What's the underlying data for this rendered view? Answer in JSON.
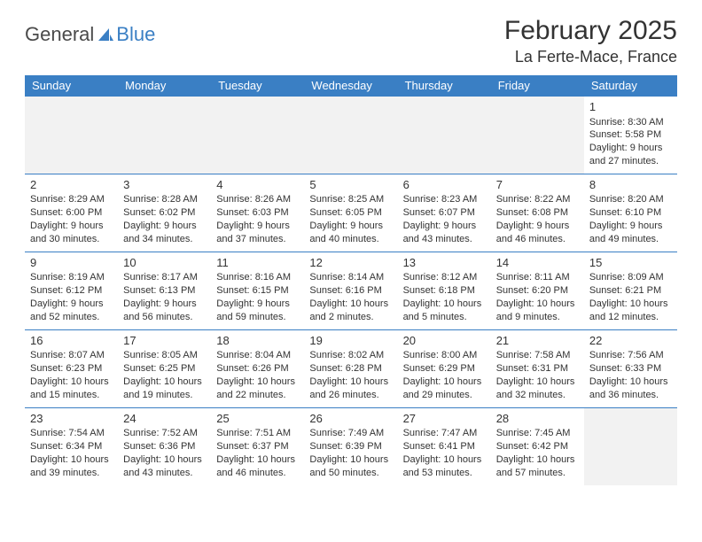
{
  "logo": {
    "text1": "General",
    "text2": "Blue"
  },
  "header": {
    "month_title": "February 2025",
    "location": "La Ferte-Mace, France"
  },
  "colors": {
    "header_bg": "#3a7fc4",
    "header_text": "#ffffff",
    "cell_border": "#3a7fc4",
    "empty_bg": "#f2f2f2",
    "text": "#333333"
  },
  "daynames": [
    "Sunday",
    "Monday",
    "Tuesday",
    "Wednesday",
    "Thursday",
    "Friday",
    "Saturday"
  ],
  "weeks": [
    [
      null,
      null,
      null,
      null,
      null,
      null,
      {
        "n": "1",
        "sunrise": "8:30 AM",
        "sunset": "5:58 PM",
        "dl": "9 hours and 27 minutes."
      }
    ],
    [
      {
        "n": "2",
        "sunrise": "8:29 AM",
        "sunset": "6:00 PM",
        "dl": "9 hours and 30 minutes."
      },
      {
        "n": "3",
        "sunrise": "8:28 AM",
        "sunset": "6:02 PM",
        "dl": "9 hours and 34 minutes."
      },
      {
        "n": "4",
        "sunrise": "8:26 AM",
        "sunset": "6:03 PM",
        "dl": "9 hours and 37 minutes."
      },
      {
        "n": "5",
        "sunrise": "8:25 AM",
        "sunset": "6:05 PM",
        "dl": "9 hours and 40 minutes."
      },
      {
        "n": "6",
        "sunrise": "8:23 AM",
        "sunset": "6:07 PM",
        "dl": "9 hours and 43 minutes."
      },
      {
        "n": "7",
        "sunrise": "8:22 AM",
        "sunset": "6:08 PM",
        "dl": "9 hours and 46 minutes."
      },
      {
        "n": "8",
        "sunrise": "8:20 AM",
        "sunset": "6:10 PM",
        "dl": "9 hours and 49 minutes."
      }
    ],
    [
      {
        "n": "9",
        "sunrise": "8:19 AM",
        "sunset": "6:12 PM",
        "dl": "9 hours and 52 minutes."
      },
      {
        "n": "10",
        "sunrise": "8:17 AM",
        "sunset": "6:13 PM",
        "dl": "9 hours and 56 minutes."
      },
      {
        "n": "11",
        "sunrise": "8:16 AM",
        "sunset": "6:15 PM",
        "dl": "9 hours and 59 minutes."
      },
      {
        "n": "12",
        "sunrise": "8:14 AM",
        "sunset": "6:16 PM",
        "dl": "10 hours and 2 minutes."
      },
      {
        "n": "13",
        "sunrise": "8:12 AM",
        "sunset": "6:18 PM",
        "dl": "10 hours and 5 minutes."
      },
      {
        "n": "14",
        "sunrise": "8:11 AM",
        "sunset": "6:20 PM",
        "dl": "10 hours and 9 minutes."
      },
      {
        "n": "15",
        "sunrise": "8:09 AM",
        "sunset": "6:21 PM",
        "dl": "10 hours and 12 minutes."
      }
    ],
    [
      {
        "n": "16",
        "sunrise": "8:07 AM",
        "sunset": "6:23 PM",
        "dl": "10 hours and 15 minutes."
      },
      {
        "n": "17",
        "sunrise": "8:05 AM",
        "sunset": "6:25 PM",
        "dl": "10 hours and 19 minutes."
      },
      {
        "n": "18",
        "sunrise": "8:04 AM",
        "sunset": "6:26 PM",
        "dl": "10 hours and 22 minutes."
      },
      {
        "n": "19",
        "sunrise": "8:02 AM",
        "sunset": "6:28 PM",
        "dl": "10 hours and 26 minutes."
      },
      {
        "n": "20",
        "sunrise": "8:00 AM",
        "sunset": "6:29 PM",
        "dl": "10 hours and 29 minutes."
      },
      {
        "n": "21",
        "sunrise": "7:58 AM",
        "sunset": "6:31 PM",
        "dl": "10 hours and 32 minutes."
      },
      {
        "n": "22",
        "sunrise": "7:56 AM",
        "sunset": "6:33 PM",
        "dl": "10 hours and 36 minutes."
      }
    ],
    [
      {
        "n": "23",
        "sunrise": "7:54 AM",
        "sunset": "6:34 PM",
        "dl": "10 hours and 39 minutes."
      },
      {
        "n": "24",
        "sunrise": "7:52 AM",
        "sunset": "6:36 PM",
        "dl": "10 hours and 43 minutes."
      },
      {
        "n": "25",
        "sunrise": "7:51 AM",
        "sunset": "6:37 PM",
        "dl": "10 hours and 46 minutes."
      },
      {
        "n": "26",
        "sunrise": "7:49 AM",
        "sunset": "6:39 PM",
        "dl": "10 hours and 50 minutes."
      },
      {
        "n": "27",
        "sunrise": "7:47 AM",
        "sunset": "6:41 PM",
        "dl": "10 hours and 53 minutes."
      },
      {
        "n": "28",
        "sunrise": "7:45 AM",
        "sunset": "6:42 PM",
        "dl": "10 hours and 57 minutes."
      },
      null
    ]
  ],
  "labels": {
    "sunrise": "Sunrise: ",
    "sunset": "Sunset: ",
    "daylight": "Daylight: "
  }
}
